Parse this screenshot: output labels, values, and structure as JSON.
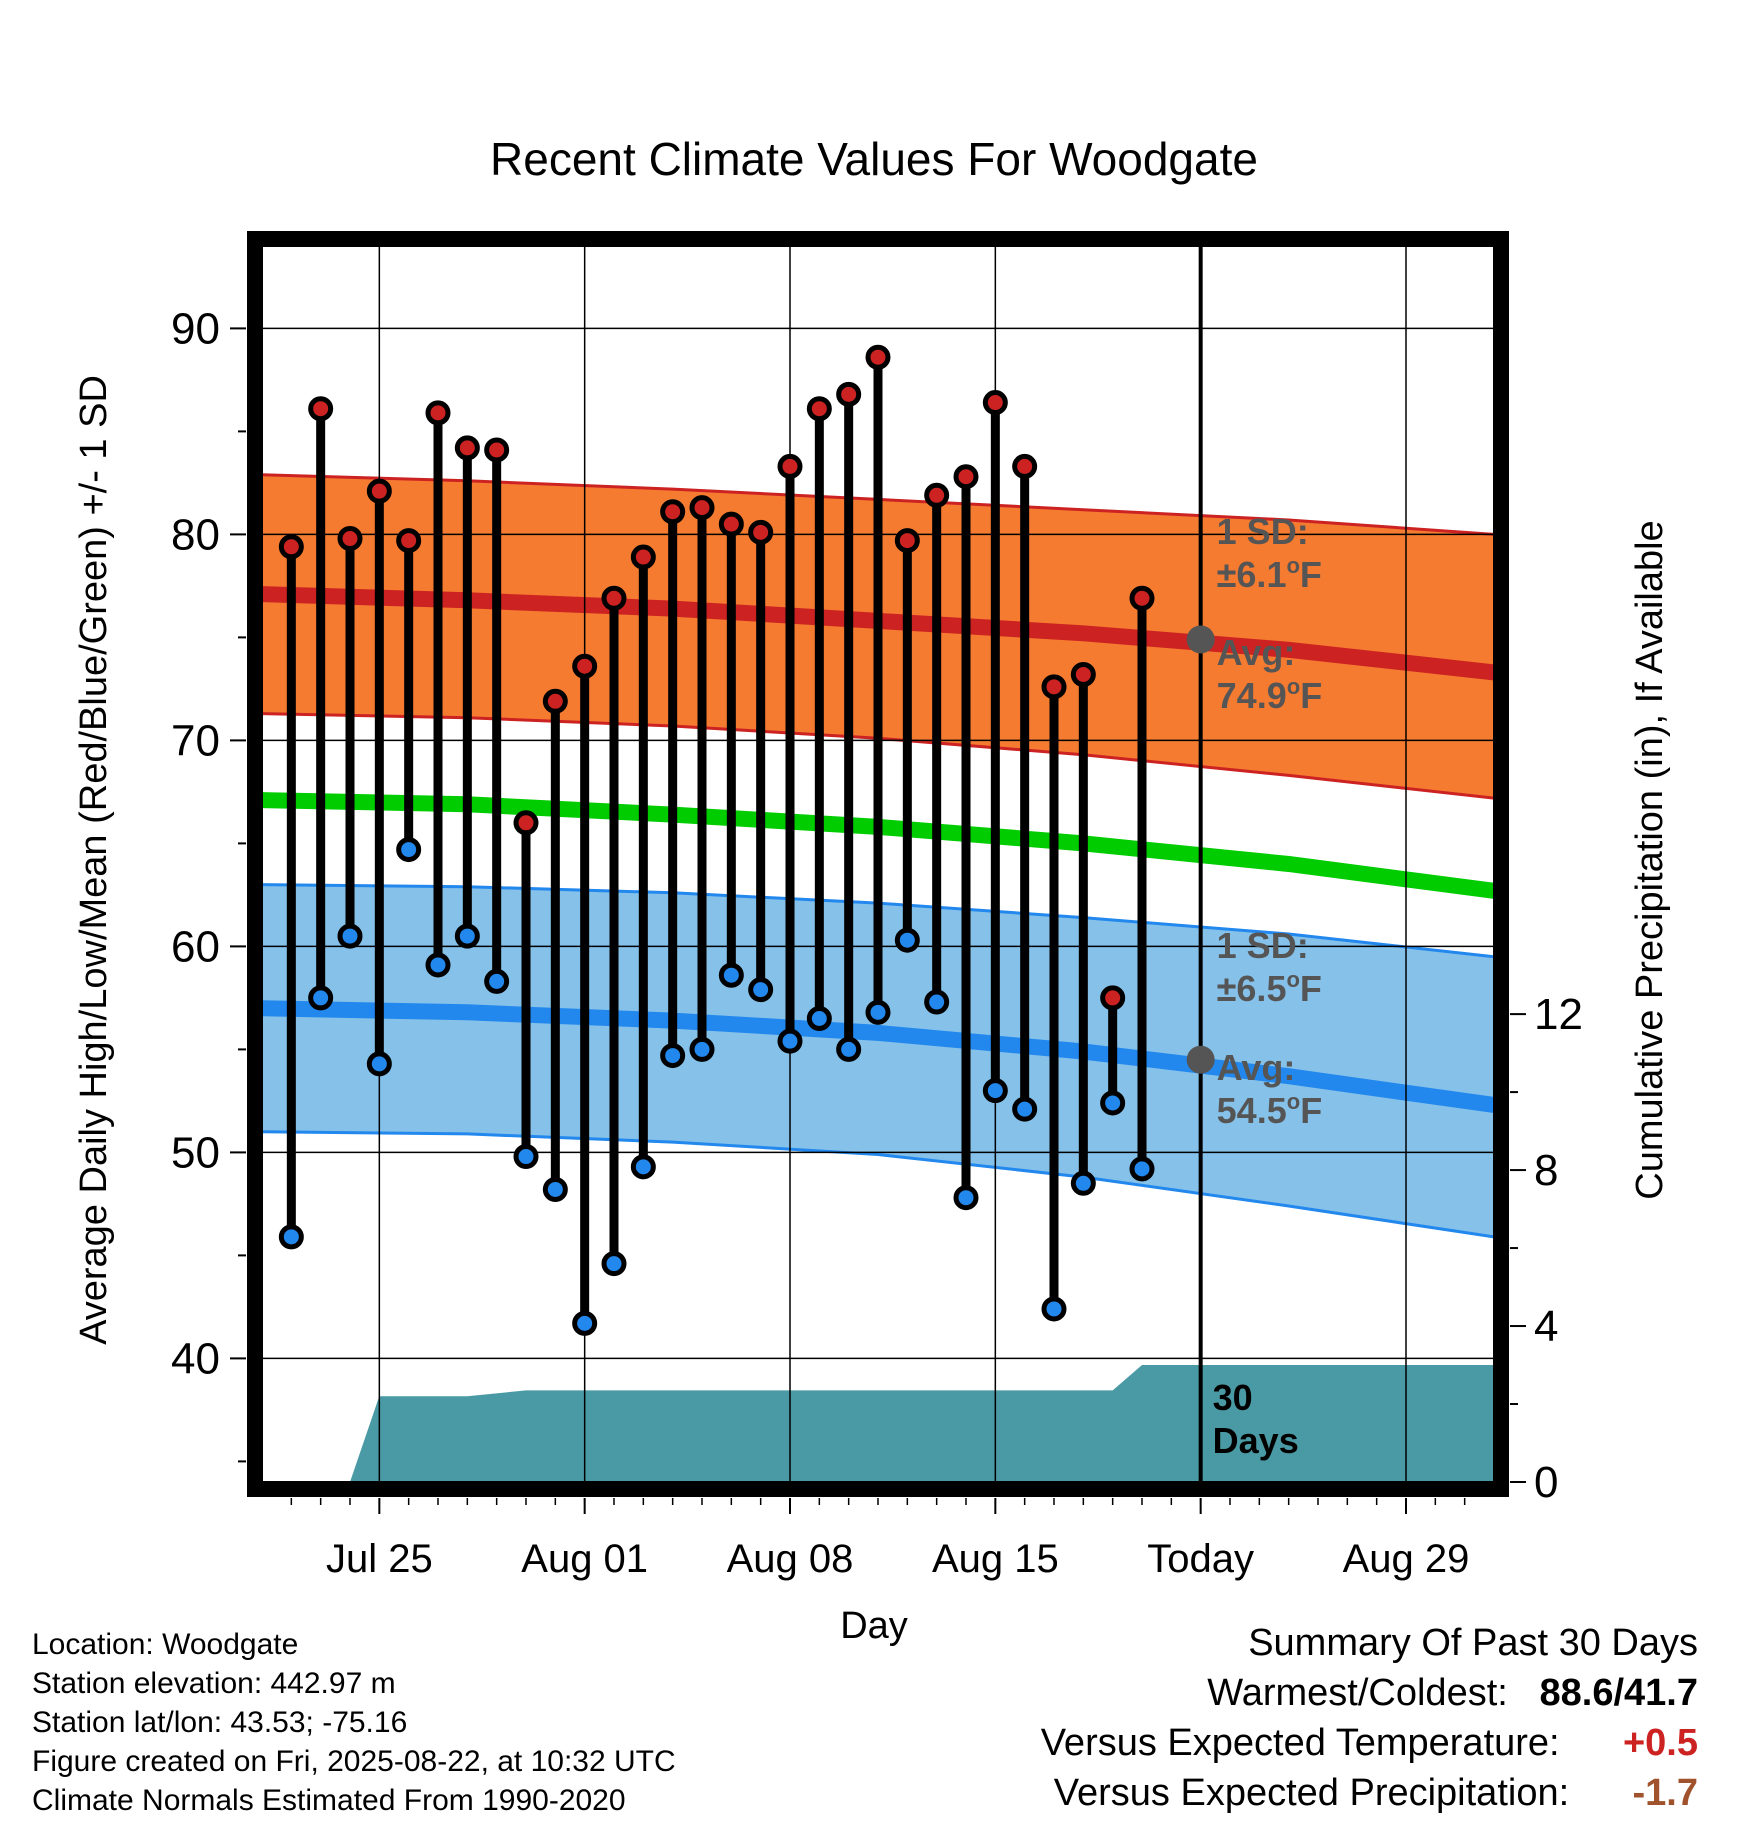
{
  "chart_data": {
    "type": "line",
    "title": "Recent Climate Values For Woodgate",
    "xlabel": "Day",
    "ylabel": "Average Daily High/Low/Mean (Red/Blue/Green) +/- 1 SD",
    "y2label": "Cumulative Precipitation (in), If Available",
    "ylim": [
      34,
      94
    ],
    "y2lim": [
      0,
      31.7
    ],
    "xlim": [
      "2025-07-21",
      "2025-09-01"
    ],
    "x_tick_labels": [
      "Jul 25",
      "Aug 01",
      "Aug 08",
      "Aug 15",
      "Today",
      "Aug 29"
    ],
    "x_tick_dates": [
      "2025-07-25",
      "2025-08-01",
      "2025-08-08",
      "2025-08-15",
      "2025-08-22",
      "2025-08-29"
    ],
    "y_ticks": [
      40,
      50,
      60,
      70,
      80,
      90
    ],
    "y2_ticks": [
      0,
      4,
      8,
      12
    ],
    "grid": true,
    "dates": [
      "2025-07-22",
      "2025-07-23",
      "2025-07-24",
      "2025-07-25",
      "2025-07-26",
      "2025-07-27",
      "2025-07-28",
      "2025-07-29",
      "2025-07-30",
      "2025-07-31",
      "2025-08-01",
      "2025-08-02",
      "2025-08-03",
      "2025-08-04",
      "2025-08-05",
      "2025-08-06",
      "2025-08-07",
      "2025-08-08",
      "2025-08-09",
      "2025-08-10",
      "2025-08-11",
      "2025-08-12",
      "2025-08-13",
      "2025-08-14",
      "2025-08-15",
      "2025-08-16",
      "2025-08-17",
      "2025-08-18",
      "2025-08-19",
      "2025-08-20",
      "2025-08-21"
    ],
    "series": [
      {
        "name": "High",
        "color": "#cc2222",
        "values": [
          79.4,
          86.1,
          79.8,
          82.1,
          79.7,
          85.9,
          84.2,
          84.1,
          66.0,
          71.9,
          73.6,
          76.9,
          78.9,
          81.1,
          81.3,
          80.5,
          80.1,
          83.3,
          86.1,
          86.8,
          88.6,
          79.7,
          81.9,
          82.8,
          86.4,
          83.3,
          72.6,
          73.2,
          57.5,
          76.9,
          null
        ]
      },
      {
        "name": "Low",
        "color": "#2288ee",
        "values": [
          45.9,
          57.5,
          60.5,
          54.3,
          64.7,
          59.1,
          60.5,
          58.3,
          49.8,
          48.2,
          41.7,
          44.6,
          49.3,
          54.7,
          55.0,
          58.6,
          57.9,
          55.4,
          56.5,
          55.0,
          56.8,
          60.3,
          57.3,
          47.8,
          53.0,
          52.1,
          42.4,
          48.5,
          52.4,
          49.2,
          null
        ]
      }
    ],
    "normals": {
      "dates": [
        "2025-07-21",
        "2025-07-28",
        "2025-08-04",
        "2025-08-11",
        "2025-08-18",
        "2025-08-25",
        "2025-09-01"
      ],
      "high_avg": [
        77.1,
        76.8,
        76.4,
        75.8,
        75.2,
        74.4,
        73.3
      ],
      "high_upper": [
        82.9,
        82.6,
        82.2,
        81.7,
        81.2,
        80.7,
        80.0
      ],
      "high_lower": [
        71.3,
        71.1,
        70.7,
        70.1,
        69.3,
        68.3,
        67.2
      ],
      "mean_avg": [
        67.1,
        66.9,
        66.4,
        65.8,
        65.0,
        64.0,
        62.7
      ],
      "low_avg": [
        57.0,
        56.8,
        56.4,
        55.8,
        54.9,
        53.7,
        52.3
      ],
      "low_upper": [
        63.0,
        62.9,
        62.6,
        62.1,
        61.4,
        60.6,
        59.5
      ],
      "low_lower": [
        51.0,
        50.9,
        50.5,
        49.9,
        48.8,
        47.4,
        45.9
      ]
    },
    "precipitation": {
      "dates": [
        "2025-07-24",
        "2025-07-25",
        "2025-07-28",
        "2025-07-30",
        "2025-08-19",
        "2025-08-20",
        "2025-09-01"
      ],
      "cumulative": [
        0,
        2.2,
        2.2,
        2.35,
        2.35,
        3.0,
        3.0
      ]
    },
    "today_marker": {
      "high_avg": 74.9,
      "low_avg": 54.5
    },
    "annotations": {
      "high_sd_label": "1 SD:",
      "high_sd_value": "±6.1°F",
      "high_avg_label": "Avg:",
      "high_avg_value": "74.9°F",
      "low_sd_label": "1 SD:",
      "low_sd_value": "±6.5°F",
      "low_avg_label": "Avg:",
      "low_avg_value": "54.5°F",
      "days_count": "30",
      "days_label": "Days"
    }
  },
  "info": {
    "location": "Location: Woodgate",
    "elevation": "Station elevation: 442.97 m",
    "latlon": "Station lat/lon: 43.53; -75.16",
    "created": "Figure created on Fri, 2025-08-22, at 10:32 UTC",
    "normals": "Climate Normals Estimated From 1990-2020"
  },
  "summary": {
    "title": "Summary Of Past 30 Days",
    "warm_cold_label": "Warmest/Coldest:",
    "warm_cold_value": "88.6/41.7",
    "temp_label": "Versus Expected Temperature:",
    "temp_value": "+0.5",
    "temp_color": "#cc2222",
    "precip_label": "Versus Expected Precipitation:",
    "precip_value": "-1.7",
    "precip_color": "#a0522d"
  },
  "colors": {
    "high_band": "#f47b30",
    "high_line": "#cc2222",
    "low_band": "#85c1e9",
    "low_line": "#2288ee",
    "mean_line": "#00cc00",
    "precip_fill": "#4a9aa5",
    "marker_gray": "#555555",
    "annotation_text": "#555555"
  }
}
